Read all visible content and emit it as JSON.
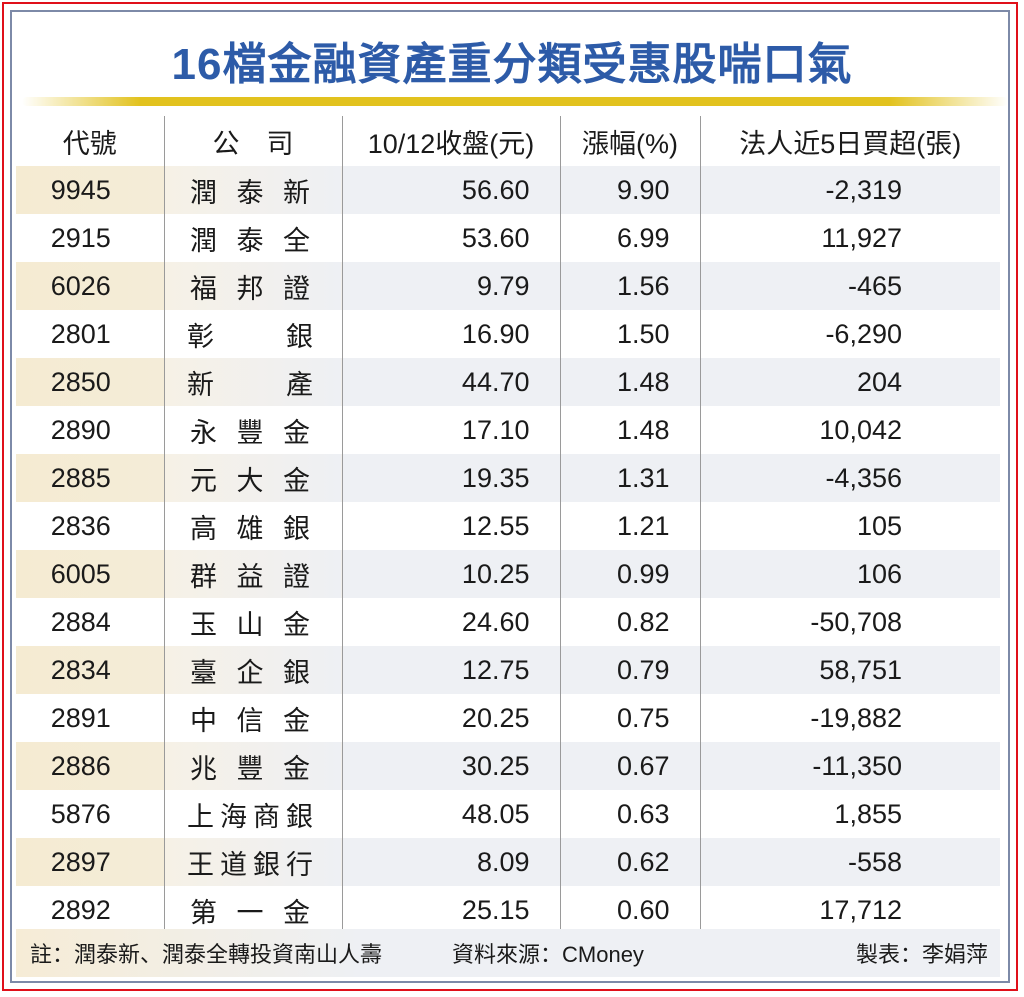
{
  "title": "16檔金融資產重分類受惠股喘口氣",
  "table": {
    "headers": [
      "代號",
      "公　司",
      "10/12收盤(元)",
      "漲幅(%)",
      "法人近5日買超(張)"
    ],
    "rows": [
      {
        "code": "9945",
        "name": "潤 泰 新",
        "close": "56.60",
        "change": "9.90",
        "net_buy": "-2,319"
      },
      {
        "code": "2915",
        "name": "潤 泰 全",
        "close": "53.60",
        "change": "6.99",
        "net_buy": "11,927"
      },
      {
        "code": "6026",
        "name": "福 邦 證",
        "close": "9.79",
        "change": "1.56",
        "net_buy": "-465"
      },
      {
        "code": "2801",
        "name": "彰　　銀",
        "close": "16.90",
        "change": "1.50",
        "net_buy": "-6,290"
      },
      {
        "code": "2850",
        "name": "新　　產",
        "close": "44.70",
        "change": "1.48",
        "net_buy": "204"
      },
      {
        "code": "2890",
        "name": "永 豐 金",
        "close": "17.10",
        "change": "1.48",
        "net_buy": "10,042"
      },
      {
        "code": "2885",
        "name": "元 大 金",
        "close": "19.35",
        "change": "1.31",
        "net_buy": "-4,356"
      },
      {
        "code": "2836",
        "name": "高 雄 銀",
        "close": "12.55",
        "change": "1.21",
        "net_buy": "105"
      },
      {
        "code": "6005",
        "name": "群 益 證",
        "close": "10.25",
        "change": "0.99",
        "net_buy": "106"
      },
      {
        "code": "2884",
        "name": "玉 山 金",
        "close": "24.60",
        "change": "0.82",
        "net_buy": "-50,708"
      },
      {
        "code": "2834",
        "name": "臺 企 銀",
        "close": "12.75",
        "change": "0.79",
        "net_buy": "58,751"
      },
      {
        "code": "2891",
        "name": "中 信 金",
        "close": "20.25",
        "change": "0.75",
        "net_buy": "-19,882"
      },
      {
        "code": "2886",
        "name": "兆 豐 金",
        "close": "30.25",
        "change": "0.67",
        "net_buy": "-11,350"
      },
      {
        "code": "5876",
        "name": "上海商銀",
        "close": "48.05",
        "change": "0.63",
        "net_buy": "1,855"
      },
      {
        "code": "2897",
        "name": "王道銀行",
        "close": "8.09",
        "change": "0.62",
        "net_buy": "-558"
      },
      {
        "code": "2892",
        "name": "第 一 金",
        "close": "25.15",
        "change": "0.60",
        "net_buy": "17,712"
      }
    ]
  },
  "footer": {
    "note": "註：潤泰新、潤泰全轉投資南山人壽",
    "source": "資料來源：CMoney",
    "maker": "製表：李娟萍"
  },
  "colors": {
    "title": "#2d5ba8",
    "gold_bar": "#e2c21e",
    "outer_border": "#e0101a",
    "inner_border": "#7d8aa8",
    "row_shade": "#eef0f4",
    "code_shade": "#f5ebd2"
  },
  "chart_data": {
    "type": "table",
    "title": "16檔金融資產重分類受惠股喘口氣",
    "columns": [
      "代號",
      "公司",
      "10/12收盤(元)",
      "漲幅(%)",
      "法人近5日買超(張)"
    ],
    "rows": [
      [
        "9945",
        "潤泰新",
        56.6,
        9.9,
        -2319
      ],
      [
        "2915",
        "潤泰全",
        53.6,
        6.99,
        11927
      ],
      [
        "6026",
        "福邦證",
        9.79,
        1.56,
        -465
      ],
      [
        "2801",
        "彰銀",
        16.9,
        1.5,
        -6290
      ],
      [
        "2850",
        "新產",
        44.7,
        1.48,
        204
      ],
      [
        "2890",
        "永豐金",
        17.1,
        1.48,
        10042
      ],
      [
        "2885",
        "元大金",
        19.35,
        1.31,
        -4356
      ],
      [
        "2836",
        "高雄銀",
        12.55,
        1.21,
        105
      ],
      [
        "6005",
        "群益證",
        10.25,
        0.99,
        106
      ],
      [
        "2884",
        "玉山金",
        24.6,
        0.82,
        -50708
      ],
      [
        "2834",
        "臺企銀",
        12.75,
        0.79,
        58751
      ],
      [
        "2891",
        "中信金",
        20.25,
        0.75,
        -19882
      ],
      [
        "2886",
        "兆豐金",
        30.25,
        0.67,
        -11350
      ],
      [
        "5876",
        "上海商銀",
        48.05,
        0.63,
        1855
      ],
      [
        "2897",
        "王道銀行",
        8.09,
        0.62,
        -558
      ],
      [
        "2892",
        "第一金",
        25.15,
        0.6,
        17712
      ]
    ],
    "notes": [
      "註：潤泰新、潤泰全轉投資南山人壽",
      "資料來源：CMoney",
      "製表：李娟萍"
    ]
  }
}
